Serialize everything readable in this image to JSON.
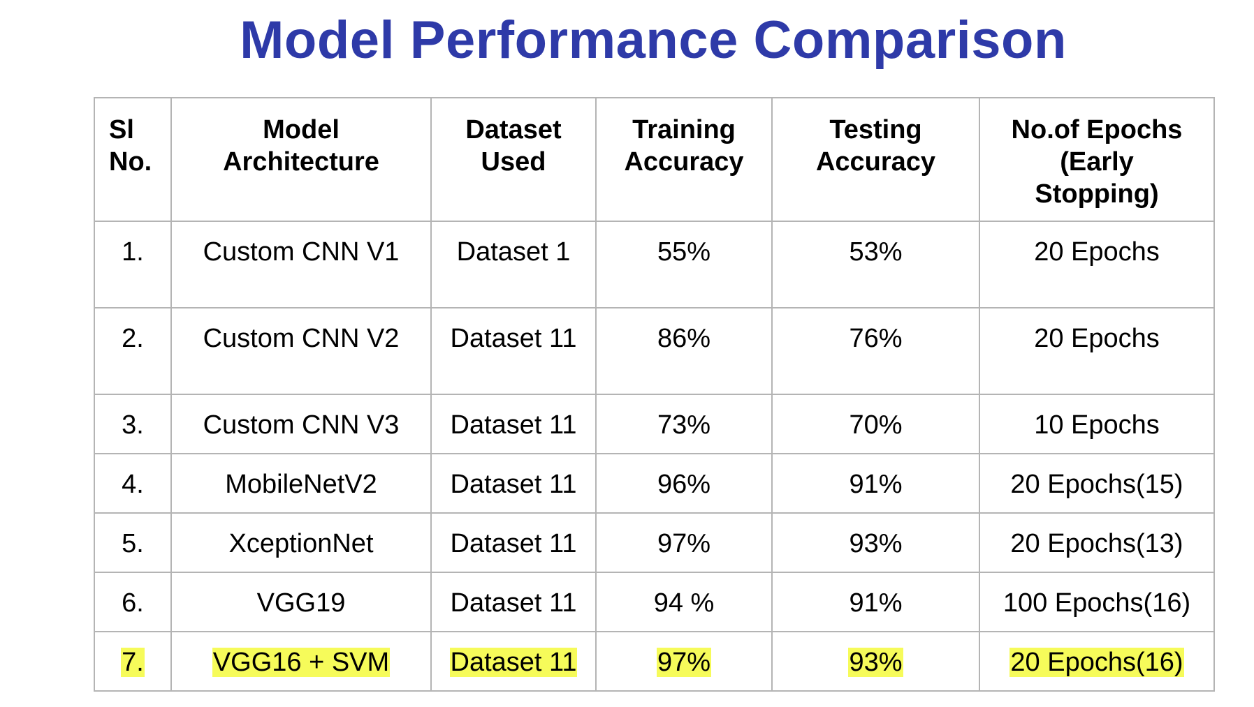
{
  "title": "Model Performance Comparison",
  "table": {
    "headers": [
      {
        "line1": "Sl",
        "line2": "No.",
        "line3": ""
      },
      {
        "line1": "Model",
        "line2": "Architecture",
        "line3": ""
      },
      {
        "line1": "Dataset",
        "line2": "Used",
        "line3": ""
      },
      {
        "line1": "Training",
        "line2": "Accuracy",
        "line3": ""
      },
      {
        "line1": "Testing",
        "line2": "Accuracy",
        "line3": ""
      },
      {
        "line1": "No.of Epochs",
        "line2": "(Early",
        "line3": "Stopping)"
      }
    ],
    "rows": [
      {
        "sl": "1.",
        "model": "Custom CNN V1",
        "dataset": "Dataset 1",
        "train": "55%",
        "test": "53%",
        "epochs": "20 Epochs",
        "highlight": false
      },
      {
        "sl": "2.",
        "model": "Custom CNN V2",
        "dataset": "Dataset 11",
        "train": "86%",
        "test": "76%",
        "epochs": "20 Epochs",
        "highlight": false
      },
      {
        "sl": "3.",
        "model": "Custom CNN V3",
        "dataset": "Dataset 11",
        "train": "73%",
        "test": "70%",
        "epochs": "10 Epochs",
        "highlight": false
      },
      {
        "sl": "4.",
        "model": "MobileNetV2",
        "dataset": "Dataset 11",
        "train": "96%",
        "test": "91%",
        "epochs": "20 Epochs(15)",
        "highlight": false
      },
      {
        "sl": "5.",
        "model": "XceptionNet",
        "dataset": "Dataset 11",
        "train": "97%",
        "test": "93%",
        "epochs": "20 Epochs(13)",
        "highlight": false
      },
      {
        "sl": "6.",
        "model": "VGG19",
        "dataset": "Dataset 11",
        "train": "94 %",
        "test": "91%",
        "epochs": "100 Epochs(16)",
        "highlight": false
      },
      {
        "sl": "7.",
        "model": "VGG16 + SVM",
        "dataset": "Dataset 11",
        "train": "97%",
        "test": "93%",
        "epochs": "20 Epochs(16)",
        "highlight": true
      }
    ]
  },
  "colors": {
    "title": "#2e3aa8",
    "border": "#b4b4b4",
    "highlight": "#f6fb5a"
  }
}
